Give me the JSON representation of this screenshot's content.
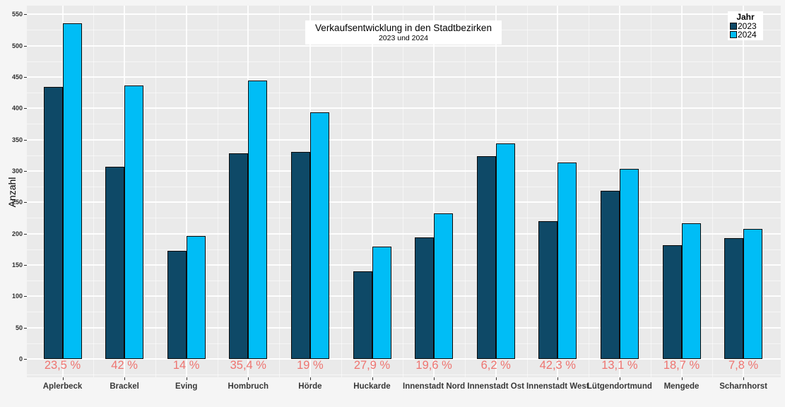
{
  "figure": {
    "title": "Verkaufsentwicklung in den Stadtbezirken",
    "subtitle": "2023 und 2024",
    "ylabel": "Anzahl",
    "legend_title": "Jahr"
  },
  "colors": {
    "bar_2023": "#0e4967",
    "bar_2024": "#00bdf6",
    "growth_label": "#ee7470",
    "panel_bg": "#eaeaea",
    "outer_bg": "#f5f5f5"
  },
  "chart_data": {
    "type": "bar",
    "title": "Verkaufsentwicklung in den Stadtbezirken",
    "subtitle": "2023 und 2024",
    "xlabel": "",
    "ylabel": "Anzahl",
    "legend": {
      "title": "Jahr",
      "position": "top-right-inside",
      "entries": [
        "2023",
        "2024"
      ]
    },
    "categories": [
      "Aplerbeck",
      "Brackel",
      "Eving",
      "Hombruch",
      "Hörde",
      "Huckarde",
      "Innenstadt Nord",
      "Innenstadt Ost",
      "Innenstadt West",
      "Lütgendortmund",
      "Mengede",
      "Scharnhorst"
    ],
    "series": [
      {
        "name": "2023",
        "color": "#0e4967",
        "values": [
          434,
          307,
          172,
          328,
          331,
          140,
          194,
          324,
          220,
          268,
          182,
          193
        ]
      },
      {
        "name": "2024",
        "color": "#00bdf6",
        "values": [
          536,
          436,
          196,
          444,
          394,
          179,
          232,
          344,
          313,
          303,
          216,
          208
        ]
      }
    ],
    "growth_labels": [
      "23,5 %",
      "42 %",
      "14 %",
      "35,4 %",
      "19 %",
      "27,9 %",
      "19,6 %",
      "6,2 %",
      "42,3 %",
      "13,1 %",
      "18,7 %",
      "7,8 %"
    ],
    "yticks": [
      0,
      50,
      100,
      150,
      200,
      250,
      300,
      350,
      400,
      450,
      500,
      550
    ],
    "ylim": [
      -30,
      564
    ],
    "grid": "white-major-and-minor-on-gray-panel"
  }
}
